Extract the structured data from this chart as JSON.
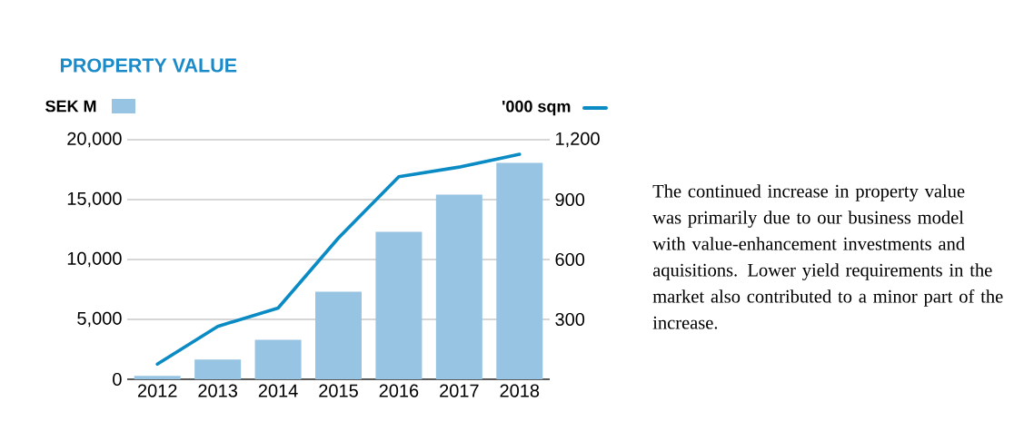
{
  "chart_data": {
    "type": "bar",
    "title": "PROPERTY VALUE",
    "categories": [
      "2012",
      "2013",
      "2014",
      "2015",
      "2016",
      "2017",
      "2018"
    ],
    "series": [
      {
        "name": "SEK M",
        "type": "bar",
        "color": "#97c4e2",
        "values": [
          280,
          1640,
          3300,
          7310,
          12310,
          15410,
          18060
        ]
      },
      {
        "name": "'000 sqm",
        "type": "line",
        "axis": "y2",
        "color": "#0a8bc4",
        "values": [
          76,
          265,
          357,
          708,
          1015,
          1063,
          1127
        ]
      }
    ],
    "ylim": [
      0,
      20000
    ],
    "yticks": [
      0,
      {
        "value": 5000,
        "label": "5,000"
      },
      {
        "value": 10000,
        "label": "10,000"
      },
      {
        "value": 15000,
        "label": "15,000"
      },
      {
        "value": 20000,
        "label": "20,000"
      }
    ],
    "y2lim": [
      0,
      1200
    ],
    "y2ticks": [
      300,
      600,
      900,
      {
        "value": 1200,
        "label": "1,200"
      }
    ],
    "grid": "y",
    "legend": "top",
    "annotations": [
      "The continued increase in property value was primarily due to our business model with value-enhancement investments and aquisitions. Lower yield requirements in the market also contributed to a minor part of the increase."
    ]
  }
}
